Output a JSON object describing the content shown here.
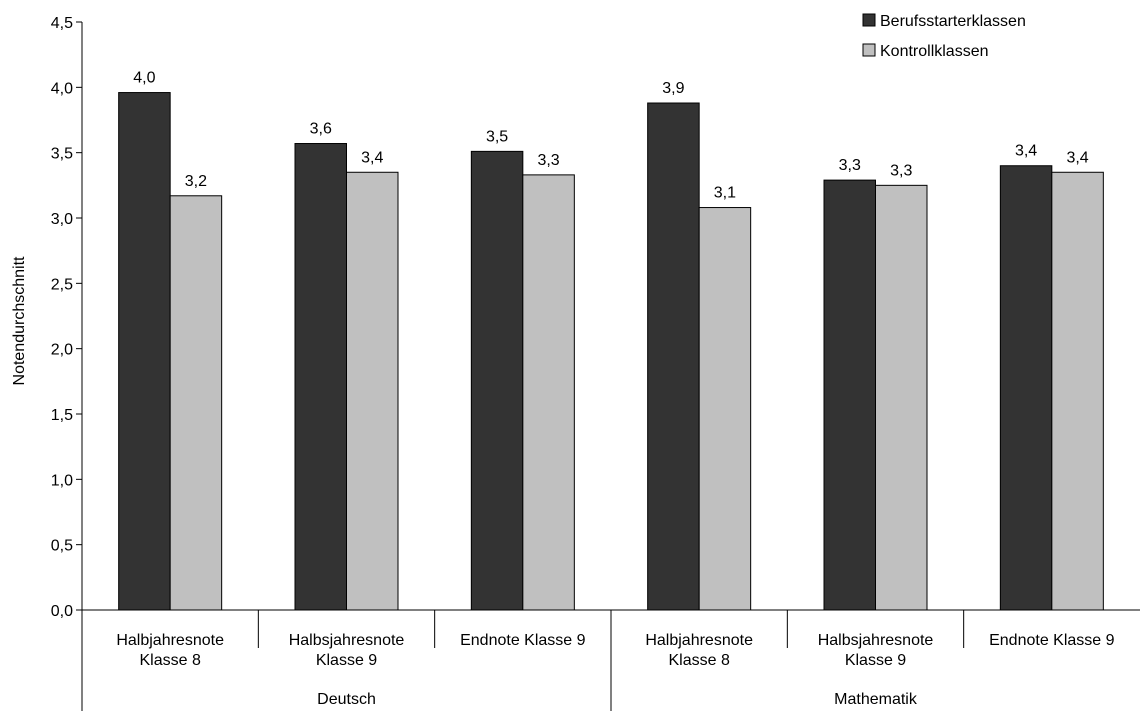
{
  "chart_data": {
    "type": "bar",
    "ylabel": "Notendurchschnitt",
    "ylim": [
      0,
      4.5
    ],
    "y_ticks": [
      "0,0",
      "0,5",
      "1,0",
      "1,5",
      "2,0",
      "2,5",
      "3,0",
      "3,5",
      "4,0",
      "4,5"
    ],
    "categories": [
      {
        "lines": [
          "Halbjahresnote",
          "Klasse 8"
        ],
        "group": "Deutsch"
      },
      {
        "lines": [
          "Halbsjahresnote",
          "Klasse 9"
        ],
        "group": "Deutsch"
      },
      {
        "lines": [
          "Endnote Klasse 9"
        ],
        "group": "Deutsch"
      },
      {
        "lines": [
          "Halbjahresnote",
          "Klasse 8"
        ],
        "group": "Mathematik"
      },
      {
        "lines": [
          "Halbsjahresnote",
          "Klasse 9"
        ],
        "group": "Mathematik"
      },
      {
        "lines": [
          "Endnote Klasse 9"
        ],
        "group": "Mathematik"
      }
    ],
    "groups": [
      "Deutsch",
      "Mathematik"
    ],
    "series": [
      {
        "name": "Berufsstarterklassen",
        "color": "#333333",
        "values": [
          3.96,
          3.57,
          3.51,
          3.88,
          3.29,
          3.4
        ],
        "labels": [
          "4,0",
          "3,6",
          "3,5",
          "3,9",
          "3,3",
          "3,4"
        ]
      },
      {
        "name": "Kontrollklassen",
        "color": "#c0c0c0",
        "values": [
          3.17,
          3.35,
          3.33,
          3.08,
          3.25,
          3.35
        ],
        "labels": [
          "3,2",
          "3,4",
          "3,3",
          "3,1",
          "3,3",
          "3,4"
        ]
      }
    ],
    "legend_position": "top-right",
    "grid": false
  }
}
